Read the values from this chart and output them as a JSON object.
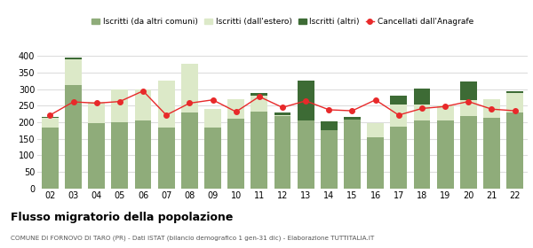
{
  "years": [
    "02",
    "03",
    "04",
    "05",
    "06",
    "07",
    "08",
    "09",
    "10",
    "11",
    "12",
    "13",
    "14",
    "15",
    "16",
    "17",
    "18",
    "19",
    "20",
    "21",
    "22"
  ],
  "iscritti_da_altri": [
    183,
    312,
    198,
    200,
    207,
    185,
    230,
    183,
    210,
    232,
    218,
    205,
    175,
    208,
    155,
    188,
    205,
    207,
    220,
    215,
    230
  ],
  "iscritti_dall_estero": [
    30,
    78,
    63,
    100,
    93,
    140,
    148,
    57,
    60,
    50,
    5,
    0,
    0,
    0,
    42,
    65,
    50,
    45,
    48,
    55,
    60
  ],
  "iscritti_altri": [
    3,
    5,
    2,
    0,
    0,
    0,
    0,
    0,
    0,
    8,
    8,
    120,
    28,
    8,
    0,
    28,
    48,
    0,
    55,
    0,
    5
  ],
  "cancellati": [
    222,
    262,
    258,
    263,
    295,
    222,
    258,
    268,
    232,
    278,
    245,
    265,
    238,
    235,
    268,
    222,
    242,
    248,
    263,
    240,
    235
  ],
  "color_da_altri": "#8fac7a",
  "color_dall_estero": "#dce9c8",
  "color_altri": "#3d6b35",
  "color_cancellati": "#e8292a",
  "background_color": "#ffffff",
  "grid_color": "#dddddd",
  "title": "Flusso migratorio della popolazione",
  "subtitle": "COMUNE DI FORNOVO DI TARO (PR) - Dati ISTAT (bilancio demografico 1 gen-31 dic) - Elaborazione TUTTITALIA.IT",
  "legend_labels": [
    "Iscritti (da altri comuni)",
    "Iscritti (dall'estero)",
    "Iscritti (altri)",
    "Cancellati dall'Anagrafe"
  ],
  "ylim": [
    0,
    420
  ],
  "yticks": [
    0,
    50,
    100,
    150,
    200,
    250,
    300,
    350,
    400
  ]
}
